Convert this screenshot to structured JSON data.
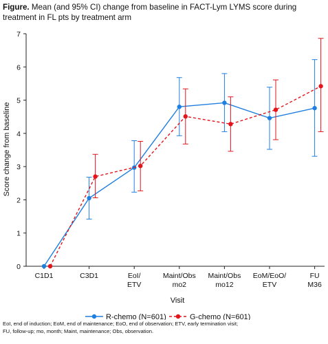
{
  "figure": {
    "label": "Figure.",
    "title": "Mean (and 95% CI) change from baseline in FACT-Lym LYMS score during treatment in FL pts by treatment arm",
    "footnote_line1": "EoI, end of induction; EoM, end of maintenance; EoO, end of observation; ETV, early termination visit;",
    "footnote_line2": "FU, follow-up; mo, month; Maint, maintenance; Obs, observation."
  },
  "chart_data": {
    "type": "line",
    "xlabel": "Visit",
    "ylabel": "Score change from baseline",
    "ylim": [
      0,
      7
    ],
    "yticks": [
      0,
      1,
      2,
      3,
      4,
      5,
      6,
      7
    ],
    "grid": false,
    "legend_position": "bottom",
    "categories": [
      [
        "C1D1"
      ],
      [
        "C3D1"
      ],
      [
        "EoI/",
        "ETV"
      ],
      [
        "Maint/Obs",
        "mo2"
      ],
      [
        "Maint/Obs",
        "mo12"
      ],
      [
        "EoM/EoO/",
        "ETV"
      ],
      [
        "FU",
        "M36"
      ]
    ],
    "series": [
      {
        "name": "R-chemo (N=601)",
        "color": "#1f7fe0",
        "style": "solid",
        "values": [
          0,
          2.05,
          2.97,
          4.8,
          4.92,
          4.46,
          4.76
        ],
        "ci_low": [
          null,
          1.42,
          2.23,
          3.93,
          4.05,
          3.52,
          3.31
        ],
        "ci_high": [
          null,
          2.68,
          3.78,
          5.68,
          5.8,
          5.39,
          6.22
        ]
      },
      {
        "name": "G-chemo (N=601)",
        "color": "#e3141b",
        "style": "dashed",
        "values": [
          0,
          2.7,
          3.02,
          4.51,
          4.28,
          4.71,
          5.42
        ],
        "ci_low": [
          null,
          2.06,
          2.27,
          3.68,
          3.46,
          3.81,
          4.05
        ],
        "ci_high": [
          null,
          3.37,
          3.76,
          5.34,
          5.1,
          5.61,
          6.86
        ]
      }
    ]
  }
}
